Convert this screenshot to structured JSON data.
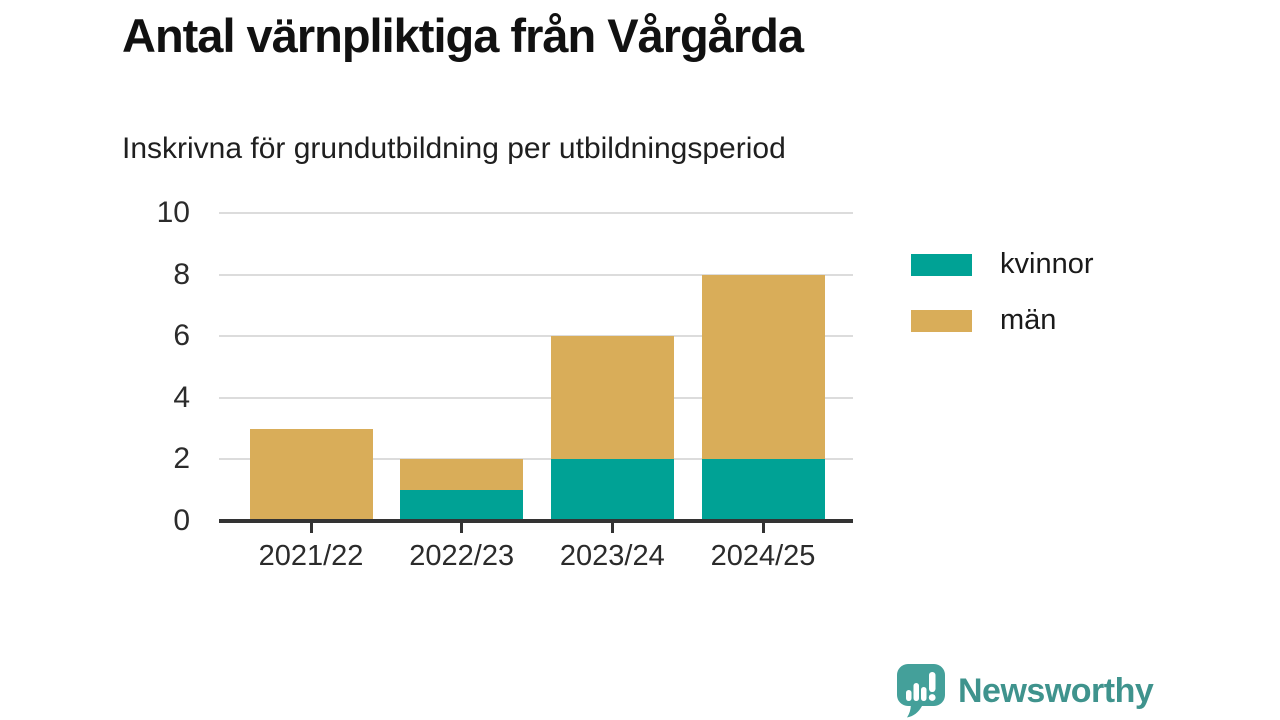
{
  "header": {
    "title": "Antal värnpliktiga från Vårgårda",
    "subtitle": "Inskrivna för grundutbildning per utbildningsperiod"
  },
  "chart_data": {
    "type": "bar",
    "stacked": true,
    "title": "Antal värnpliktiga från Vårgårda",
    "subtitle": "Inskrivna för grundutbildning per utbildningsperiod",
    "categories": [
      "2021/22",
      "2022/23",
      "2023/24",
      "2024/25"
    ],
    "series": [
      {
        "name": "kvinnor",
        "color": "#00a295",
        "values": [
          0,
          1,
          2,
          2
        ]
      },
      {
        "name": "män",
        "color": "#d9ad59",
        "values": [
          3,
          1,
          4,
          6
        ]
      }
    ],
    "totals": [
      3,
      2,
      6,
      8
    ],
    "yticks": [
      0,
      2,
      4,
      6,
      8,
      10
    ],
    "ylim": [
      0,
      10
    ],
    "grid": true,
    "legend_position": "right",
    "grid_color": "#dcdcdc",
    "axis_color": "#333333"
  },
  "footer": {
    "brand": "Newsworthy",
    "brand_color": "#3f938d",
    "logo_icon": "speech-bubble-bar-chart-exclamation"
  }
}
